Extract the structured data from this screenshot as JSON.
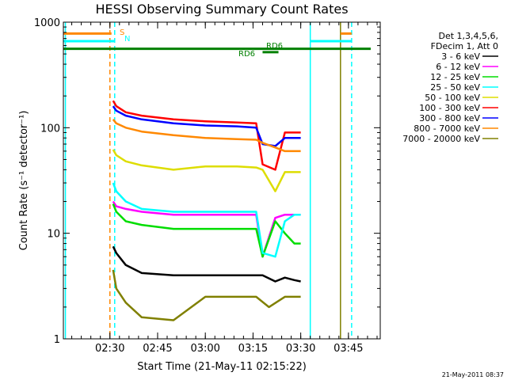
{
  "chart_data": {
    "type": "line",
    "title": "HESSI Observing Summary Count Rates",
    "xlabel": "Start Time (21-May-11 02:15:22)",
    "ylabel": "Count Rate (s⁻¹ detector⁻¹)",
    "y_scale": "log",
    "ylim": [
      1,
      1000
    ],
    "xlim": [
      "02:15:22",
      "03:55:00"
    ],
    "x_ticks": [
      "02:30",
      "02:45",
      "03:00",
      "03:15",
      "03:30",
      "03:45"
    ],
    "y_ticks": [
      "1",
      "10",
      "100",
      "1000"
    ],
    "timestamp": "21-May-2011 08:37",
    "legend": {
      "header": [
        "Det 1,3,4,5,6,",
        "FDecim 1, Att 0"
      ],
      "position": "right"
    },
    "series": [
      {
        "name": "3 - 6 keV",
        "color": "#000000",
        "x": [
          "02:31:00",
          "02:32:00",
          "02:35:00",
          "02:40:00",
          "02:50:00",
          "03:00:00",
          "03:10:00",
          "03:18:00",
          "03:22:00",
          "03:25:00",
          "03:28:00",
          "03:30:00"
        ],
        "y": [
          7.5,
          6.5,
          5.0,
          4.2,
          4.0,
          4.0,
          4.0,
          4.0,
          3.5,
          3.8,
          3.6,
          3.5
        ]
      },
      {
        "name": "6 - 12 keV",
        "color": "#ff00ff",
        "x": [
          "02:31:00",
          "02:32:00",
          "02:35:00",
          "02:40:00",
          "02:50:00",
          "03:00:00",
          "03:10:00",
          "03:16:00",
          "03:18:00",
          "03:22:00",
          "03:25:00",
          "03:28:00",
          "03:30:00"
        ],
        "y": [
          20,
          18,
          17,
          16,
          15,
          15,
          15,
          15,
          6,
          14,
          15,
          15,
          15
        ]
      },
      {
        "name": "12 - 25 keV",
        "color": "#00dd00",
        "x": [
          "02:31:00",
          "02:32:00",
          "02:35:00",
          "02:40:00",
          "02:50:00",
          "03:00:00",
          "03:10:00",
          "03:16:00",
          "03:18:00",
          "03:22:00",
          "03:25:00",
          "03:28:00",
          "03:30:00"
        ],
        "y": [
          19,
          16,
          13,
          12,
          11,
          11,
          11,
          11,
          6,
          13,
          10,
          8,
          8
        ]
      },
      {
        "name": "25 - 50 keV",
        "color": "#00ffff",
        "x": [
          "02:31:00",
          "02:32:00",
          "02:35:00",
          "02:40:00",
          "02:50:00",
          "03:00:00",
          "03:10:00",
          "03:16:00",
          "03:18:00",
          "03:22:00",
          "03:25:00",
          "03:28:00",
          "03:30:00"
        ],
        "y": [
          30,
          25,
          20,
          17,
          16,
          16,
          16,
          16,
          6.5,
          6,
          13,
          15,
          15
        ]
      },
      {
        "name": "50 - 100 keV",
        "color": "#dddd00",
        "x": [
          "02:31:00",
          "02:32:00",
          "02:35:00",
          "02:40:00",
          "02:50:00",
          "03:00:00",
          "03:10:00",
          "03:16:00",
          "03:18:00",
          "03:22:00",
          "03:25:00",
          "03:28:00",
          "03:30:00"
        ],
        "y": [
          62,
          55,
          48,
          44,
          40,
          43,
          43,
          42,
          40,
          25,
          38,
          38,
          38
        ]
      },
      {
        "name": "100 - 300 keV",
        "color": "#ff0000",
        "x": [
          "02:31:00",
          "02:32:00",
          "02:35:00",
          "02:40:00",
          "02:50:00",
          "03:00:00",
          "03:10:00",
          "03:16:00",
          "03:18:00",
          "03:22:00",
          "03:25:00",
          "03:28:00",
          "03:30:00"
        ],
        "y": [
          180,
          160,
          140,
          130,
          120,
          115,
          112,
          110,
          45,
          40,
          90,
          90,
          90
        ]
      },
      {
        "name": "300 - 800 keV",
        "color": "#0000ff",
        "x": [
          "02:31:00",
          "02:32:00",
          "02:35:00",
          "02:40:00",
          "02:50:00",
          "03:00:00",
          "03:10:00",
          "03:16:00",
          "03:18:00",
          "03:22:00",
          "03:25:00",
          "03:28:00",
          "03:30:00"
        ],
        "y": [
          160,
          145,
          130,
          120,
          110,
          105,
          103,
          100,
          70,
          67,
          80,
          80,
          80
        ]
      },
      {
        "name": "800 - 7000 keV",
        "color": "#ff8800",
        "x": [
          "02:31:00",
          "02:32:00",
          "02:35:00",
          "02:40:00",
          "02:50:00",
          "03:00:00",
          "03:10:00",
          "03:16:00",
          "03:18:00",
          "03:22:00",
          "03:25:00",
          "03:28:00",
          "03:30:00"
        ],
        "y": [
          120,
          110,
          100,
          92,
          85,
          80,
          78,
          77,
          72,
          65,
          60,
          60,
          60
        ]
      },
      {
        "name": "7000 - 20000 keV",
        "color": "#808000",
        "x": [
          "02:31:00",
          "02:32:00",
          "02:35:00",
          "02:40:00",
          "02:50:00",
          "03:00:00",
          "03:10:00",
          "03:16:00",
          "03:20:00",
          "03:25:00",
          "03:28:00",
          "03:30:00"
        ],
        "y": [
          4.5,
          3.0,
          2.2,
          1.6,
          1.5,
          2.5,
          2.5,
          2.5,
          2.0,
          2.5,
          2.5,
          2.5
        ]
      }
    ],
    "annotations": [
      {
        "text": "S",
        "color": "#ff8800"
      },
      {
        "text": "N",
        "color": "#00ffff"
      },
      {
        "text": "RD6",
        "color": "#008000"
      },
      {
        "text": "RD6",
        "color": "#008000"
      }
    ],
    "state_bars": [
      {
        "name": "S",
        "color": "#ff8800",
        "y": 780,
        "spans": [
          [
            "02:15:22",
            "02:30:30"
          ],
          [
            "03:42:30",
            "03:46:00"
          ]
        ]
      },
      {
        "name": "N",
        "color": "#00ffff",
        "y": 660,
        "spans": [
          [
            "02:15:22",
            "02:31:30"
          ],
          [
            "03:33:00",
            "03:46:00"
          ]
        ]
      },
      {
        "name": "RD6",
        "color": "#008000",
        "y": 560,
        "spans": [
          [
            "02:15:22",
            "03:52:00"
          ]
        ]
      },
      {
        "name": "RD6 short",
        "color": "#008000",
        "y": 520,
        "spans": [
          [
            "03:18:00",
            "03:23:00"
          ]
        ]
      }
    ],
    "vertical_markers": [
      {
        "x": "02:16:00",
        "color": "#00ffff",
        "dashed": false
      },
      {
        "x": "02:30:00",
        "color": "#ff8800",
        "dashed": true
      },
      {
        "x": "02:31:30",
        "color": "#00ffff",
        "dashed": true
      },
      {
        "x": "03:33:00",
        "color": "#00ffff",
        "dashed": false
      },
      {
        "x": "03:42:30",
        "color": "#808000",
        "dashed": false
      },
      {
        "x": "03:46:00",
        "color": "#00ffff",
        "dashed": true
      }
    ]
  }
}
